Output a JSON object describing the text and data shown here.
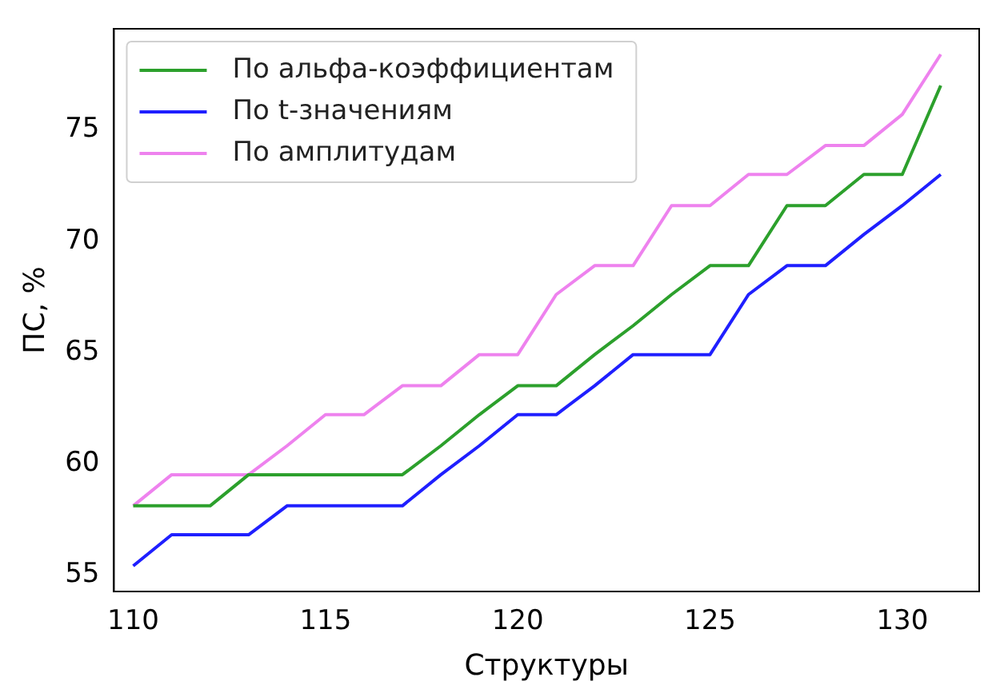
{
  "chart_data": {
    "type": "line",
    "xlabel": "Структуры",
    "ylabel": "ПС, %",
    "x": [
      110,
      111,
      112,
      113,
      114,
      115,
      116,
      117,
      118,
      119,
      120,
      121,
      122,
      123,
      124,
      125,
      126,
      127,
      128,
      129,
      130,
      131
    ],
    "series": [
      {
        "name": "По альфа-коэффициентам",
        "color": "#2ca02c",
        "values": [
          58.1,
          58.1,
          58.1,
          59.5,
          59.5,
          59.5,
          59.5,
          59.5,
          60.8,
          62.2,
          63.5,
          63.5,
          64.9,
          66.2,
          67.6,
          68.9,
          68.9,
          71.6,
          71.6,
          73.0,
          73.0,
          77.0
        ]
      },
      {
        "name": "По t-значениям",
        "color": "#1f1fff",
        "values": [
          55.4,
          56.8,
          56.8,
          56.8,
          58.1,
          58.1,
          58.1,
          58.1,
          59.5,
          60.8,
          62.2,
          62.2,
          63.5,
          64.9,
          64.9,
          64.9,
          67.6,
          68.9,
          68.9,
          70.3,
          71.6,
          73.0
        ]
      },
      {
        "name": "По амплитудам",
        "color": "#ee82ee",
        "values": [
          58.1,
          59.5,
          59.5,
          59.5,
          60.8,
          62.2,
          62.2,
          63.5,
          63.5,
          64.9,
          64.9,
          67.6,
          68.9,
          68.9,
          71.6,
          71.6,
          73.0,
          73.0,
          74.3,
          74.3,
          75.7,
          78.4
        ]
      }
    ],
    "xlim": [
      109.5,
      132
    ],
    "xticks": [
      110,
      115,
      120,
      125,
      130
    ],
    "ylim": [
      54.25,
      79.55
    ],
    "yticks": [
      55,
      60,
      65,
      70,
      75
    ],
    "grid": false,
    "legend": "top left",
    "marker": "none",
    "line_style": "solid"
  }
}
